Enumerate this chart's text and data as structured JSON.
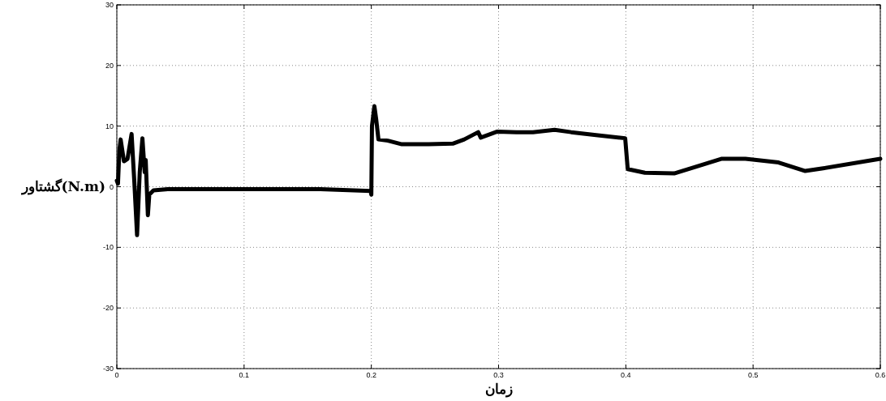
{
  "chart_data": {
    "type": "line",
    "xlabel": "زمان",
    "ylabel": "گشتاور(N.m)",
    "xlim": [
      0,
      0.6
    ],
    "ylim": [
      -30,
      30
    ],
    "xticks": [
      0,
      0.1,
      0.2,
      0.3,
      0.4,
      0.5,
      0.6
    ],
    "yticks": [
      -30,
      -20,
      -10,
      0,
      10,
      20,
      30
    ],
    "grid": true,
    "line_style": "solid",
    "marker": "none",
    "x": [
      0,
      0.0009,
      0.002,
      0.003,
      0.0056,
      0.0084,
      0.0116,
      0.0137,
      0.0159,
      0.018,
      0.0201,
      0.0219,
      0.0227,
      0.0244,
      0.0255,
      0.0288,
      0.04,
      0.08,
      0.12,
      0.16,
      0.1995,
      0.2,
      0.2005,
      0.2024,
      0.2039,
      0.2056,
      0.213,
      0.224,
      0.245,
      0.264,
      0.273,
      0.284,
      0.286,
      0.299,
      0.314,
      0.327,
      0.344,
      0.357,
      0.378,
      0.3995,
      0.4015,
      0.415,
      0.438,
      0.455,
      0.475,
      0.494,
      0.52,
      0.541,
      0.554,
      0.6
    ],
    "series": [
      {
        "color": "#000000",
        "values": [
          1,
          0.5,
          6,
          7.8,
          4.2,
          4.6,
          8.7,
          1,
          -8,
          2.4,
          8,
          2.4,
          4.4,
          -4.7,
          -1.3,
          -0.6,
          -0.4,
          -0.4,
          -0.4,
          -0.4,
          -0.7,
          -1.3,
          10,
          13.3,
          11,
          7.8,
          7.6,
          7,
          7,
          7.1,
          7.8,
          9,
          8.1,
          9.1,
          9,
          9,
          9.4,
          9,
          8.5,
          8,
          2.9,
          2.3,
          2.2,
          3.3,
          4.6,
          4.6,
          4,
          2.6,
          3,
          4.6
        ]
      }
    ]
  }
}
